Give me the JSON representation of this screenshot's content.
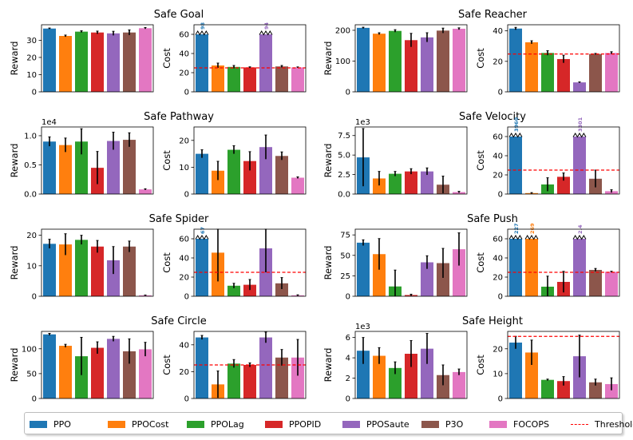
{
  "colors": {
    "PPO": "#1f77b4",
    "PPOCost": "#ff7f0e",
    "PPOLag": "#2ca02c",
    "PPOPID": "#d62728",
    "PPOSaute": "#9467bd",
    "P3O": "#8c564b",
    "FOCOPS": "#e377c2",
    "threshold": "#ff0000"
  },
  "legend": {
    "items": [
      "PPO",
      "PPOCost",
      "PPOLag",
      "PPOPID",
      "PPOSaute",
      "P3O",
      "FOCOPS"
    ],
    "threshold_label": "Threshold"
  },
  "chart_data": [
    {
      "title": "Safe Goal",
      "type": "bar",
      "reward": {
        "ylabel": "Reward",
        "yticks": [
          0,
          10,
          20,
          30
        ],
        "ylim": [
          0,
          39
        ],
        "multiplier": "",
        "values": [
          36.8,
          32.5,
          35.0,
          34.5,
          34.0,
          34.5,
          37.0
        ],
        "errors": [
          0.3,
          0.5,
          0.5,
          0.8,
          1.2,
          1.5,
          0.4
        ]
      },
      "cost": {
        "ylabel": "Cost",
        "yticks": [
          0,
          20,
          40,
          60
        ],
        "ylim": [
          0,
          70
        ],
        "threshold": 25,
        "values": [
          60,
          27.5,
          26,
          25.5,
          60,
          26.5,
          25.5
        ],
        "errors": [
          0,
          2.5,
          1.5,
          0.6,
          0,
          1,
          0.5
        ],
        "broken": [
          0,
          4
        ],
        "broken_labels": [
          "98",
          "94"
        ]
      }
    },
    {
      "title": "Safe Reacher",
      "type": "bar",
      "reward": {
        "ylabel": "Reward",
        "yticks": [
          0,
          100,
          200
        ],
        "ylim": [
          0,
          218
        ],
        "multiplier": "",
        "values": [
          208,
          189,
          198,
          168,
          177,
          199,
          205
        ],
        "errors": [
          2,
          3,
          4,
          22,
          15,
          8,
          3
        ]
      },
      "cost": {
        "ylabel": "Cost",
        "yticks": [
          0,
          20,
          40
        ],
        "ylim": [
          0,
          44
        ],
        "threshold": 24.8,
        "values": [
          41.5,
          32.5,
          25.5,
          21.5,
          6.2,
          24.8,
          25.5
        ],
        "errors": [
          0.8,
          1,
          1.5,
          2.5,
          0.3,
          0.4,
          0.8
        ],
        "broken": [],
        "broken_labels": []
      }
    },
    {
      "title": "Safe Pathway",
      "type": "bar",
      "reward": {
        "ylabel": "Reward",
        "yticks": [
          0.0,
          0.5,
          1.0
        ],
        "ylim": [
          0,
          1.15
        ],
        "multiplier": "1e4",
        "values": [
          0.9,
          0.84,
          0.9,
          0.45,
          0.91,
          0.93,
          0.08
        ],
        "errors": [
          0.08,
          0.12,
          0.22,
          0.28,
          0.15,
          0.12,
          0.01
        ]
      },
      "cost": {
        "ylabel": "Cost",
        "yticks": [
          0,
          10,
          20
        ],
        "ylim": [
          0,
          25
        ],
        "threshold": null,
        "values": [
          15,
          8.7,
          16.5,
          12.3,
          17.5,
          14.2,
          6.1
        ],
        "errors": [
          1.5,
          3.5,
          1.5,
          3.5,
          4.5,
          1.5,
          0.3
        ],
        "broken": [],
        "broken_labels": []
      }
    },
    {
      "title": "Safe Velocity",
      "type": "bar",
      "reward": {
        "ylabel": "Reward",
        "yticks": [
          0.0,
          2.5,
          5.0,
          7.5
        ],
        "ylim": [
          0,
          8.6
        ],
        "multiplier": "1e3",
        "values": [
          4.7,
          2.0,
          2.6,
          2.9,
          2.9,
          1.2,
          0.25
        ],
        "errors": [
          3.7,
          0.9,
          0.3,
          0.35,
          0.45,
          1.1,
          0.1
        ]
      },
      "cost": {
        "ylabel": "Cost",
        "yticks": [
          0,
          20,
          40,
          60
        ],
        "ylim": [
          0,
          70
        ],
        "threshold": 25,
        "values": [
          60,
          1,
          10,
          18,
          60,
          16,
          3
        ],
        "errors": [
          0,
          0.5,
          7,
          4,
          0,
          9,
          1.5
        ],
        "broken": [
          0,
          4
        ],
        "broken_labels": [
          "3960",
          "3301"
        ]
      }
    },
    {
      "title": "Safe Spider",
      "type": "bar",
      "reward": {
        "ylabel": "Reward",
        "yticks": [
          0,
          10,
          20
        ],
        "ylim": [
          0,
          22
        ],
        "multiplier": "",
        "values": [
          17.2,
          17.0,
          18.5,
          16.3,
          11.8,
          16.3,
          0.3
        ],
        "errors": [
          1.5,
          3.5,
          1.5,
          2,
          4.5,
          1.8,
          0.1
        ]
      },
      "cost": {
        "ylabel": "Cost",
        "yticks": [
          0,
          20,
          40,
          60
        ],
        "ylim": [
          0,
          70
        ],
        "threshold": 25,
        "values": [
          60,
          45.5,
          11,
          12,
          50,
          13.5,
          1
        ],
        "errors": [
          0,
          30,
          2.5,
          5.5,
          25,
          6,
          0.5
        ],
        "broken": [
          0
        ],
        "broken_labels": [
          "67"
        ]
      }
    },
    {
      "title": "Safe Push",
      "type": "bar",
      "reward": {
        "ylabel": "Reward",
        "yticks": [
          0,
          25,
          50,
          75
        ],
        "ylim": [
          0,
          82
        ],
        "multiplier": "",
        "values": [
          65.5,
          51.5,
          12,
          1.5,
          41.5,
          40.5,
          57.5
        ],
        "errors": [
          3.5,
          19,
          20,
          1,
          8,
          18,
          20
        ]
      },
      "cost": {
        "ylabel": "Cost",
        "yticks": [
          0,
          20,
          40,
          60
        ],
        "ylim": [
          0,
          70
        ],
        "threshold": 25,
        "values": [
          60,
          60,
          10,
          15,
          60,
          27.5,
          25.5
        ],
        "errors": [
          0,
          0,
          11,
          11,
          0,
          1.5,
          0.6
        ],
        "broken": [
          0,
          1,
          4
        ],
        "broken_labels": [
          "227",
          "269",
          "2.4"
        ]
      }
    },
    {
      "title": "Safe Circle",
      "type": "bar",
      "reward": {
        "ylabel": "Reward",
        "yticks": [
          0,
          50,
          100
        ],
        "ylim": [
          0,
          135
        ],
        "multiplier": "",
        "values": [
          129,
          106,
          85,
          102,
          120,
          95,
          99
        ],
        "errors": [
          2,
          3,
          38,
          12,
          5,
          25,
          14
        ]
      },
      "cost": {
        "ylabel": "Cost",
        "yticks": [
          0,
          20,
          40
        ],
        "ylim": [
          0,
          50
        ],
        "threshold": 25,
        "values": [
          45.5,
          10.5,
          26,
          25,
          45.5,
          30.5,
          30.5
        ],
        "errors": [
          1.5,
          10,
          3,
          1.5,
          4,
          6,
          13.5
        ],
        "broken": [],
        "broken_labels": []
      }
    },
    {
      "title": "Safe Height",
      "type": "bar",
      "reward": {
        "ylabel": "Reward",
        "yticks": [
          0,
          2,
          4,
          6
        ],
        "ylim": [
          0,
          6.6
        ],
        "multiplier": "1e3",
        "values": [
          4.7,
          4.2,
          3.0,
          4.4,
          4.9,
          2.3,
          2.6
        ],
        "errors": [
          1.3,
          0.8,
          0.6,
          1.3,
          1.5,
          1.0,
          0.3
        ]
      },
      "cost": {
        "ylabel": "Cost",
        "yticks": [
          0,
          10,
          20
        ],
        "ylim": [
          0,
          27
        ],
        "threshold": 25,
        "values": [
          22.5,
          18.5,
          7.5,
          7,
          17,
          6.5,
          5.8
        ],
        "errors": [
          2.5,
          5,
          0.3,
          1.8,
          8.5,
          1.3,
          2.5
        ],
        "broken": [],
        "broken_labels": []
      }
    }
  ]
}
